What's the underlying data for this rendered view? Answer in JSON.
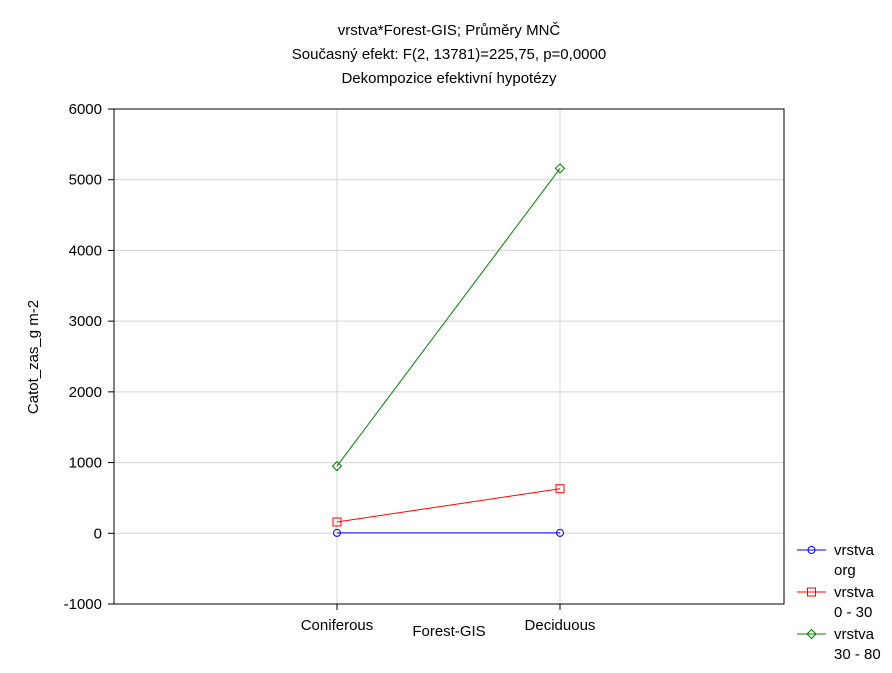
{
  "chart_data": {
    "type": "line",
    "title_lines": [
      "vrstva*Forest-GIS; Průměry MNČ",
      "Současný efekt: F(2, 13781)=225,75, p=0,0000",
      "Dekompozice efektivní hypotézy"
    ],
    "xlabel": "Forest-GIS",
    "ylabel": "Catot_zas_g m-2",
    "categories": [
      "Coniferous",
      "Deciduous"
    ],
    "ylim": [
      -1000,
      6000
    ],
    "yticks": [
      -1000,
      0,
      1000,
      2000,
      3000,
      4000,
      5000,
      6000
    ],
    "grid": true,
    "legend_position": "bottom-right",
    "series": [
      {
        "name_lines": [
          "vrstva",
          "org"
        ],
        "marker": "circle",
        "color": "#0000ff",
        "values": [
          5,
          5
        ]
      },
      {
        "name_lines": [
          "vrstva",
          "0 - 30"
        ],
        "marker": "square",
        "color": "#ff0000",
        "values": [
          160,
          630
        ]
      },
      {
        "name_lines": [
          "vrstva",
          "30 - 80"
        ],
        "marker": "diamond",
        "color": "#008000",
        "values": [
          950,
          5160
        ]
      }
    ]
  }
}
